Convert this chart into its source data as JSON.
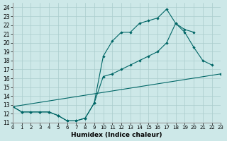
{
  "xlabel": "Humidex (Indice chaleur)",
  "bg_color": "#cde8e8",
  "grid_color": "#aacccc",
  "line_color": "#006666",
  "line1_x": [
    0,
    1,
    2,
    3,
    4,
    5,
    6,
    7,
    8,
    9,
    10,
    11,
    12,
    13,
    14,
    15,
    16,
    17,
    18,
    19,
    20,
    21,
    22
  ],
  "line1_y": [
    12.8,
    12.2,
    12.2,
    12.2,
    12.2,
    11.8,
    11.2,
    11.2,
    11.5,
    13.2,
    18.5,
    20.2,
    21.2,
    21.2,
    22.2,
    22.5,
    22.8,
    23.8,
    22.2,
    21.2,
    19.5,
    18.0,
    17.5
  ],
  "line2_x": [
    0,
    1,
    2,
    3,
    4,
    5,
    6,
    7,
    8,
    9,
    10,
    11,
    12,
    13,
    14,
    15,
    16,
    17,
    18,
    19,
    20
  ],
  "line2_y": [
    12.8,
    12.2,
    12.2,
    12.2,
    12.2,
    11.8,
    11.2,
    11.2,
    11.5,
    13.2,
    16.2,
    16.5,
    17.0,
    17.5,
    18.0,
    18.5,
    19.0,
    20.0,
    22.2,
    21.5,
    21.2
  ],
  "line3_x": [
    0,
    23
  ],
  "line3_y": [
    12.8,
    16.5
  ],
  "xlim": [
    0,
    23
  ],
  "ylim": [
    11,
    24.5
  ],
  "yticks": [
    11,
    12,
    13,
    14,
    15,
    16,
    17,
    18,
    19,
    20,
    21,
    22,
    23,
    24
  ],
  "xticks": [
    0,
    1,
    2,
    3,
    4,
    5,
    6,
    7,
    8,
    9,
    10,
    11,
    12,
    13,
    14,
    15,
    16,
    17,
    18,
    19,
    20,
    21,
    22,
    23
  ],
  "ytick_fontsize": 5.5,
  "xtick_fontsize": 5.0,
  "xlabel_fontsize": 6.5,
  "lw": 0.8,
  "ms": 2.2
}
